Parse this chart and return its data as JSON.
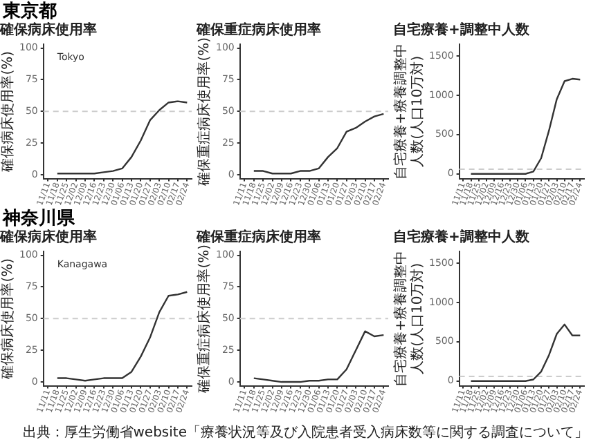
{
  "chart_data": [
    {
      "type": "line",
      "title": "確保病床使用率",
      "ylabel": "確保病床使用率(%)",
      "categories": [
        "11/11",
        "11/18",
        "11/25",
        "12/02",
        "12/09",
        "12/16",
        "12/23",
        "12/30",
        "01/06",
        "01/13",
        "01/20",
        "01/27",
        "02/03",
        "02/10",
        "02/17",
        "02/24"
      ],
      "values": [
        null,
        1,
        1,
        1,
        1,
        1,
        2,
        3,
        5,
        14,
        27,
        43,
        51,
        57,
        58,
        57
      ],
      "color": "#333333",
      "ylim": [
        -3,
        103
      ],
      "yticks": [
        0,
        25,
        50,
        75,
        100
      ],
      "ref_lines": [
        {
          "axis": "y",
          "value": 50,
          "color": "#cccccc",
          "line_style": "dashed"
        }
      ],
      "annotations": [
        "東京都",
        "Tokyo"
      ],
      "grid": false,
      "legend": false,
      "marker": "none",
      "line_style": "solid"
    },
    {
      "type": "line",
      "title": "確保重症病床使用率",
      "ylabel": "確保重症病床使用率(%)",
      "categories": [
        "11/11",
        "11/18",
        "11/25",
        "12/02",
        "12/09",
        "12/16",
        "12/23",
        "12/30",
        "01/06",
        "01/13",
        "01/20",
        "01/27",
        "02/03",
        "02/10",
        "02/17",
        "02/24"
      ],
      "values": [
        null,
        3,
        3,
        1,
        1,
        1,
        3,
        3,
        5,
        14,
        21,
        34,
        37,
        42,
        46,
        48
      ],
      "color": "#333333",
      "ylim": [
        -3,
        103
      ],
      "yticks": [
        0,
        25,
        50,
        75,
        100
      ],
      "ref_lines": [
        {
          "axis": "y",
          "value": 50,
          "color": "#cccccc",
          "line_style": "dashed"
        }
      ],
      "grid": false,
      "legend": false,
      "marker": "none",
      "line_style": "solid"
    },
    {
      "type": "line",
      "title": "自宅療養+調整中人数",
      "ylabel": "自宅療養+療養調整中人数(人口10万対)",
      "categories": [
        "11/11",
        "11/18",
        "11/25",
        "12/02",
        "12/09",
        "12/16",
        "12/23",
        "12/30",
        "01/06",
        "01/13",
        "01/20",
        "01/27",
        "02/03",
        "02/10",
        "02/17",
        "02/24"
      ],
      "values": [
        null,
        0,
        0,
        0,
        0,
        0,
        0,
        0,
        0,
        30,
        200,
        550,
        950,
        1180,
        1210,
        1200
      ],
      "color": "#333333",
      "ylim": [
        -60,
        1650
      ],
      "yticks": [
        0,
        500,
        1000,
        1500
      ],
      "ref_lines": [
        {
          "axis": "y",
          "value": 60,
          "color": "#cccccc",
          "line_style": "dashed"
        }
      ],
      "grid": false,
      "legend": false,
      "marker": "none",
      "line_style": "solid"
    },
    {
      "type": "line",
      "title": "確保病床使用率",
      "ylabel": "確保病床使用率(%)",
      "categories": [
        "11/11",
        "11/18",
        "11/25",
        "12/02",
        "12/09",
        "12/16",
        "12/23",
        "12/30",
        "01/06",
        "01/13",
        "01/20",
        "01/27",
        "02/03",
        "02/10",
        "02/17",
        "02/24"
      ],
      "values": [
        null,
        3,
        3,
        2,
        1,
        2,
        3,
        3,
        3,
        8,
        20,
        35,
        55,
        68,
        69,
        71
      ],
      "color": "#333333",
      "ylim": [
        -3,
        103
      ],
      "yticks": [
        0,
        25,
        50,
        75,
        100
      ],
      "ref_lines": [
        {
          "axis": "y",
          "value": 50,
          "color": "#cccccc",
          "line_style": "dashed"
        }
      ],
      "annotations": [
        "神奈川県",
        "Kanagawa"
      ],
      "grid": false,
      "legend": false,
      "marker": "none",
      "line_style": "solid"
    },
    {
      "type": "line",
      "title": "確保重症病床使用率",
      "ylabel": "確保重症病床使用率(%)",
      "categories": [
        "11/11",
        "11/18",
        "11/25",
        "12/02",
        "12/09",
        "12/16",
        "12/23",
        "12/30",
        "01/06",
        "01/13",
        "01/20",
        "01/27",
        "02/03",
        "02/10",
        "02/17",
        "02/24"
      ],
      "values": [
        null,
        3,
        2,
        1,
        0,
        0,
        0,
        1,
        1,
        2,
        2,
        10,
        25,
        40,
        36,
        37
      ],
      "color": "#333333",
      "ylim": [
        -3,
        103
      ],
      "yticks": [
        0,
        25,
        50,
        75,
        100
      ],
      "ref_lines": [
        {
          "axis": "y",
          "value": 50,
          "color": "#cccccc",
          "line_style": "dashed"
        }
      ],
      "grid": false,
      "legend": false,
      "marker": "none",
      "line_style": "solid"
    },
    {
      "type": "line",
      "title": "自宅療養+調整中人数",
      "ylabel": "自宅療養+療養調整中人数(人口10万対)",
      "categories": [
        "11/11",
        "11/18",
        "11/25",
        "12/02",
        "12/09",
        "12/16",
        "12/23",
        "12/30",
        "01/06",
        "01/13",
        "01/20",
        "01/27",
        "02/03",
        "02/10",
        "02/17",
        "02/24"
      ],
      "values": [
        null,
        0,
        0,
        0,
        0,
        0,
        0,
        0,
        0,
        20,
        120,
        330,
        600,
        720,
        580,
        580
      ],
      "color": "#333333",
      "ylim": [
        -60,
        1650
      ],
      "yticks": [
        0,
        500,
        1000,
        1500
      ],
      "ref_lines": [
        {
          "axis": "y",
          "value": 60,
          "color": "#cccccc",
          "line_style": "dashed"
        }
      ],
      "annotations": [
        "出典：厚生労働省website「療養状況等及び入院患者受入病床数等に関する調査について」"
      ],
      "grid": false,
      "legend": false,
      "marker": "none",
      "line_style": "solid"
    }
  ]
}
